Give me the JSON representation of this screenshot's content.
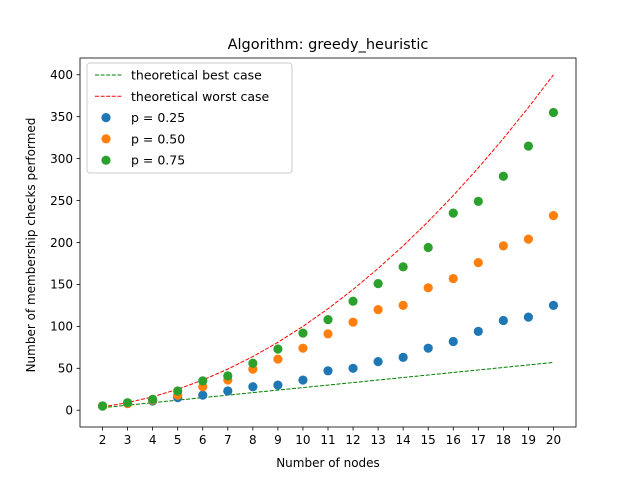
{
  "chart_data": {
    "type": "scatter",
    "title": "Algorithm: greedy_heuristic",
    "xlabel": "Number of nodes",
    "ylabel": "Number of membership checks performed",
    "x": [
      2,
      3,
      4,
      5,
      6,
      7,
      8,
      9,
      10,
      11,
      12,
      13,
      14,
      15,
      16,
      17,
      18,
      19,
      20
    ],
    "xlim": [
      1.1,
      20.9
    ],
    "ylim": [
      -20,
      420
    ],
    "xticks": [
      2,
      3,
      4,
      5,
      6,
      7,
      8,
      9,
      10,
      11,
      12,
      13,
      14,
      15,
      16,
      17,
      18,
      19,
      20
    ],
    "yticks": [
      0,
      50,
      100,
      150,
      200,
      250,
      300,
      350,
      400
    ],
    "grid": false,
    "legend_position": "top-left",
    "lines": [
      {
        "name": "theoretical best case",
        "color": "#008000",
        "dash": "dashed",
        "values": [
          3,
          6,
          9,
          12,
          15,
          18,
          21,
          24,
          27,
          30,
          33,
          36,
          39,
          42,
          45,
          48,
          51,
          54,
          57
        ]
      },
      {
        "name": "theoretical worst case",
        "color": "#ff0000",
        "dash": "dashed",
        "values": [
          4,
          9,
          16,
          25,
          36,
          49,
          64,
          81,
          100,
          121,
          144,
          169,
          196,
          225,
          256,
          289,
          324,
          361,
          400
        ]
      }
    ],
    "series": [
      {
        "name": "p = 0.25",
        "color": "#1f77b4",
        "values": [
          5,
          8,
          11,
          15,
          18,
          23,
          28,
          30,
          36,
          47,
          50,
          58,
          63,
          74,
          82,
          94,
          107,
          111,
          125
        ]
      },
      {
        "name": "p = 0.50",
        "color": "#ff7f0e",
        "values": [
          5,
          8,
          12,
          18,
          28,
          36,
          49,
          61,
          74,
          91,
          105,
          120,
          125,
          146,
          157,
          176,
          196,
          204,
          232
        ]
      },
      {
        "name": "p = 0.75",
        "color": "#2ca02c",
        "values": [
          5,
          9,
          13,
          23,
          35,
          41,
          56,
          73,
          92,
          108,
          130,
          151,
          171,
          194,
          235,
          249,
          279,
          315,
          355
        ]
      }
    ]
  }
}
